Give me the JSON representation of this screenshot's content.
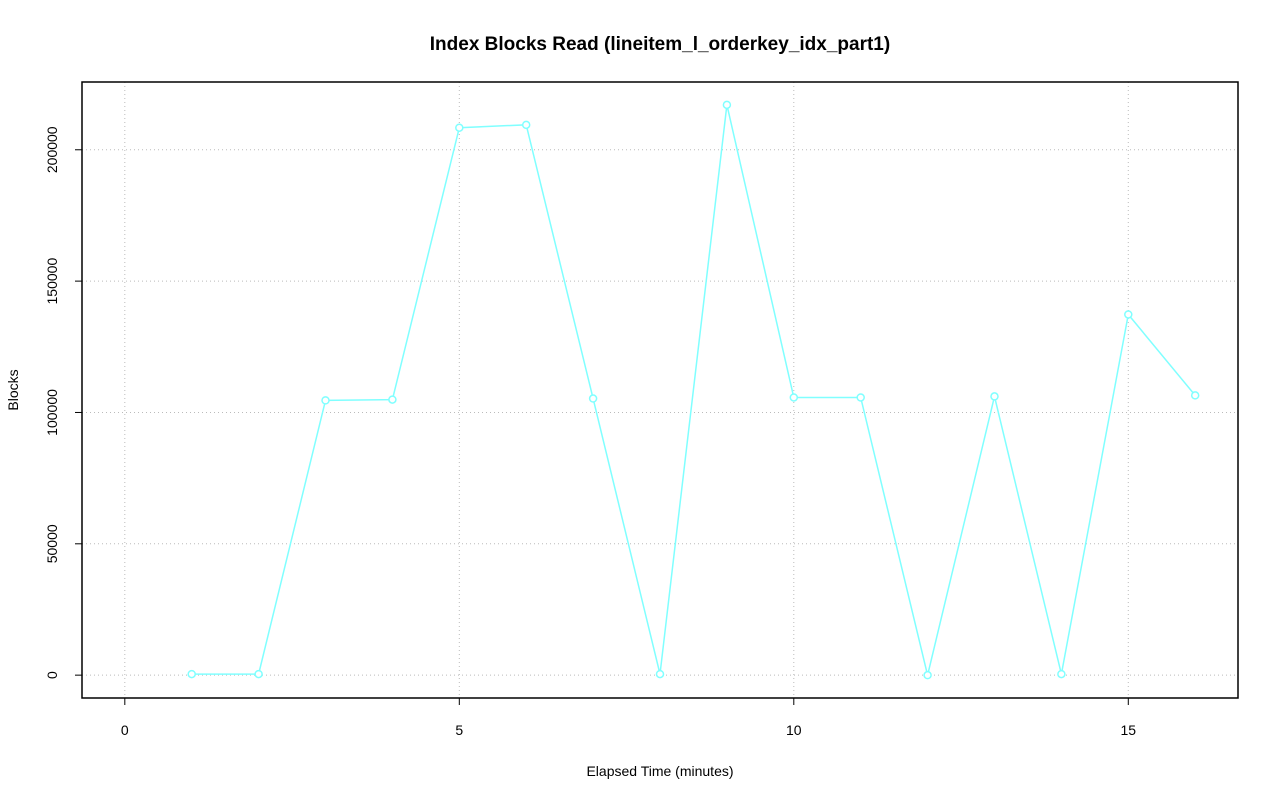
{
  "chart_data": {
    "type": "line",
    "title": "Index Blocks Read (lineitem_l_orderkey_idx_part1)",
    "x_label": "Elapsed Time (minutes)",
    "y_label": "Blocks",
    "x": [
      1,
      2,
      3,
      4,
      5,
      6,
      7,
      8,
      9,
      10,
      11,
      12,
      13,
      14,
      15,
      16
    ],
    "series": [
      {
        "color": "#80ffff",
        "values": [
          400,
          400,
          104600,
          104900,
          208400,
          209500,
          105300,
          400,
          217100,
          105700,
          105700,
          0,
          106100,
          400,
          137300,
          106500
        ]
      }
    ],
    "xlim": [
      -0.64,
      16.64
    ],
    "ylim": [
      -8700,
      225800
    ],
    "xticks": [
      0,
      5,
      10,
      15
    ],
    "yticks": [
      0,
      50000,
      100000,
      150000,
      200000
    ],
    "grid": true
  }
}
